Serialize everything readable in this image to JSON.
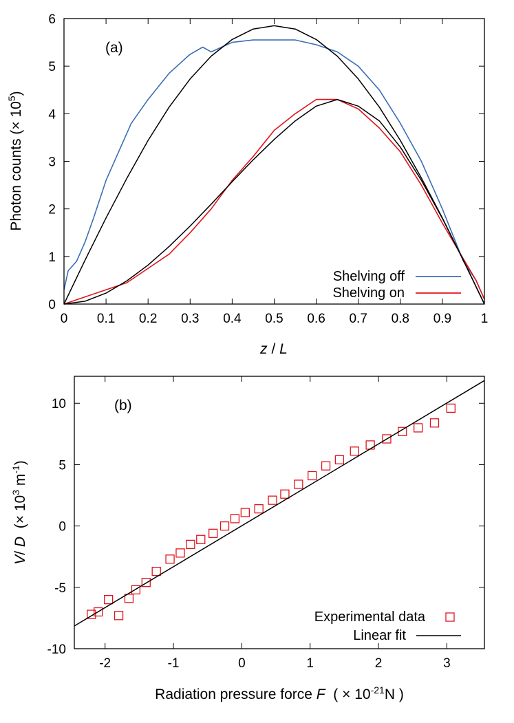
{
  "chart_data": [
    {
      "type": "line",
      "panel_label": "(a)",
      "xlabel_var": "z",
      "xlabel_sep": " / ",
      "xlabel_unit": "L",
      "ylabel_main": "Photon counts (",
      "ylabel_times": "×",
      "ylabel_base": " 10",
      "ylabel_exp": "5",
      "ylabel_close": ")",
      "xlim": [
        0,
        1
      ],
      "ylim": [
        0,
        6
      ],
      "xticks": [
        "0",
        "0.1",
        "0.2",
        "0.3",
        "0.4",
        "0.5",
        "0.6",
        "0.7",
        "0.8",
        "0.9",
        "1"
      ],
      "yticks": [
        "0",
        "1",
        "2",
        "3",
        "4",
        "5",
        "6"
      ],
      "legend_position": "bottom-right",
      "grid": false,
      "series": [
        {
          "name": "Shelving off",
          "color": "#3a6eb5",
          "x": [
            0,
            0.01,
            0.03,
            0.05,
            0.07,
            0.1,
            0.13,
            0.16,
            0.2,
            0.25,
            0.3,
            0.33,
            0.35,
            0.4,
            0.45,
            0.5,
            0.55,
            0.6,
            0.65,
            0.7,
            0.75,
            0.8,
            0.85,
            0.9,
            0.95,
            0.98,
            1.0
          ],
          "y": [
            0.3,
            0.7,
            0.9,
            1.3,
            1.8,
            2.6,
            3.2,
            3.8,
            4.3,
            4.85,
            5.25,
            5.4,
            5.3,
            5.5,
            5.55,
            5.55,
            5.55,
            5.45,
            5.3,
            5.0,
            4.5,
            3.8,
            3.0,
            2.0,
            0.9,
            0.5,
            0.1
          ]
        },
        {
          "name": "Shelving on",
          "color": "#e0141b",
          "x": [
            0,
            0.05,
            0.1,
            0.15,
            0.2,
            0.25,
            0.3,
            0.35,
            0.4,
            0.45,
            0.5,
            0.55,
            0.6,
            0.65,
            0.7,
            0.75,
            0.8,
            0.85,
            0.9,
            0.95,
            0.98,
            1.0
          ],
          "y": [
            0.0,
            0.15,
            0.3,
            0.45,
            0.75,
            1.05,
            1.5,
            2.0,
            2.6,
            3.1,
            3.65,
            4.0,
            4.3,
            4.3,
            4.1,
            3.7,
            3.2,
            2.5,
            1.7,
            0.95,
            0.5,
            0.1
          ]
        },
        {
          "name": "fit-off",
          "color": "#000000",
          "x": [
            0,
            0.05,
            0.1,
            0.15,
            0.2,
            0.25,
            0.3,
            0.35,
            0.4,
            0.45,
            0.5,
            0.55,
            0.6,
            0.65,
            0.7,
            0.75,
            0.8,
            0.85,
            0.9,
            0.95,
            1.0
          ],
          "y": [
            0.0,
            0.92,
            1.81,
            2.65,
            3.44,
            4.14,
            4.73,
            5.21,
            5.56,
            5.78,
            5.85,
            5.78,
            5.56,
            5.21,
            4.73,
            4.14,
            3.44,
            2.65,
            1.81,
            0.92,
            0.0
          ]
        },
        {
          "name": "fit-on",
          "color": "#000000",
          "x": [
            0,
            0.05,
            0.1,
            0.15,
            0.2,
            0.25,
            0.3,
            0.35,
            0.4,
            0.45,
            0.5,
            0.55,
            0.6,
            0.65,
            0.7,
            0.75,
            0.8,
            0.85,
            0.9,
            0.95,
            1.0
          ],
          "y": [
            0.0,
            0.06,
            0.23,
            0.49,
            0.82,
            1.21,
            1.64,
            2.1,
            2.57,
            3.03,
            3.46,
            3.85,
            4.16,
            4.3,
            4.16,
            3.85,
            3.3,
            2.6,
            1.8,
            0.92,
            0.0
          ]
        }
      ]
    },
    {
      "type": "scatter",
      "panel_label": "(b)",
      "xlabel_text": "Radiation pressure force ",
      "xlabel_var": "F",
      "xlabel_open": "  ( ",
      "xlabel_times": "×",
      "xlabel_base": " 10",
      "xlabel_exp": "-21",
      "xlabel_unit": "N )",
      "ylabel_var": "V",
      "ylabel_sep": "/ ",
      "ylabel_var2": "D",
      "ylabel_open": "  (",
      "ylabel_times": "×",
      "ylabel_base": " 10",
      "ylabel_exp": "3",
      "ylabel_unit": " m",
      "ylabel_exp2": "-1",
      "ylabel_close": ")",
      "xlim": [
        -2.45,
        3.55
      ],
      "ylim": [
        -10,
        12.2
      ],
      "xticks": [
        "-2",
        "-1",
        "0",
        "1",
        "2",
        "3"
      ],
      "yticks": [
        "-10",
        "-5",
        "0",
        "5",
        "10"
      ],
      "legend_position": "bottom-right",
      "grid": false,
      "series": [
        {
          "name": "Experimental data",
          "color": "#e0141b",
          "marker": "open-square",
          "x": [
            -2.2,
            -2.1,
            -1.95,
            -1.8,
            -1.65,
            -1.55,
            -1.4,
            -1.25,
            -1.05,
            -0.9,
            -0.75,
            -0.6,
            -0.42,
            -0.25,
            -0.1,
            0.05,
            0.25,
            0.45,
            0.63,
            0.83,
            1.03,
            1.23,
            1.43,
            1.65,
            1.88,
            2.12,
            2.35,
            2.58,
            2.82,
            3.06
          ],
          "y": [
            -7.2,
            -7.0,
            -6.0,
            -7.3,
            -5.9,
            -5.2,
            -4.6,
            -3.7,
            -2.7,
            -2.2,
            -1.5,
            -1.1,
            -0.6,
            0.0,
            0.6,
            1.1,
            1.4,
            2.1,
            2.6,
            3.4,
            4.1,
            4.9,
            5.4,
            6.1,
            6.6,
            7.1,
            7.7,
            8.0,
            8.4,
            9.6
          ]
        },
        {
          "name": "Linear fit",
          "color": "#000000",
          "x": [
            -2.45,
            3.55
          ],
          "y": [
            -8.15,
            11.85
          ]
        }
      ]
    }
  ]
}
